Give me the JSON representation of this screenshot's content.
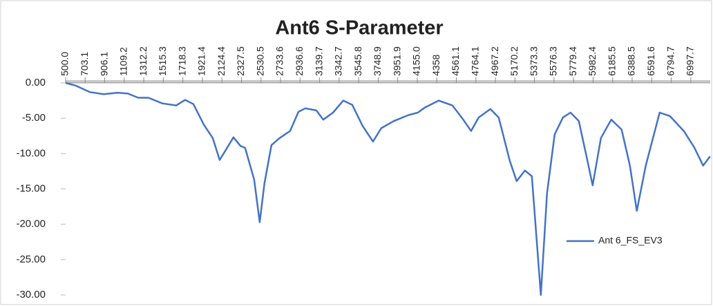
{
  "chart_data": {
    "type": "line",
    "title": "Ant6 S-Parameter",
    "x": [
      500,
      608,
      751,
      895,
      1038,
      1146,
      1254,
      1361,
      1505,
      1649,
      1742,
      1828,
      1936,
      2029,
      2101,
      2151,
      2244,
      2316,
      2366,
      2460,
      2517,
      2567,
      2639,
      2725,
      2833,
      2919,
      2991,
      3106,
      3178,
      3279,
      3386,
      3479,
      3587,
      3695,
      3781,
      3910,
      4054,
      4161,
      4233,
      4377,
      4521,
      4628,
      4714,
      4793,
      4915,
      5001,
      5116,
      5188,
      5274,
      5346,
      5439,
      5504,
      5583,
      5669,
      5748,
      5834,
      5920,
      5978,
      6064,
      6171,
      6279,
      6365,
      6437,
      6530,
      6674,
      6781,
      6925,
      7033,
      7126,
      7198
    ],
    "series": [
      {
        "name": "Ant 6_FS_EV3",
        "color": "#4472c4",
        "values": [
          0,
          -0.4,
          -1.3,
          -1.6,
          -1.4,
          -1.5,
          -2.1,
          -2.1,
          -2.9,
          -3.2,
          -2.4,
          -3.0,
          -5.9,
          -7.8,
          -10.9,
          -9.8,
          -7.7,
          -8.9,
          -9.2,
          -13.7,
          -19.7,
          -14.2,
          -8.8,
          -7.8,
          -6.8,
          -4.1,
          -3.6,
          -3.9,
          -5.2,
          -4.2,
          -2.5,
          -3.1,
          -6.1,
          -8.3,
          -6.4,
          -5.4,
          -4.6,
          -4.2,
          -3.5,
          -2.5,
          -3.2,
          -5.1,
          -6.8,
          -4.9,
          -3.7,
          -4.9,
          -11.0,
          -13.9,
          -12.4,
          -13.2,
          -30,
          -15.6,
          -7.3,
          -4.9,
          -4.2,
          -5.4,
          -10.8,
          -14.5,
          -7.8,
          -5.2,
          -6.6,
          -11.7,
          -18.1,
          -11.7,
          -4.2,
          -4.7,
          -6.8,
          -9.1,
          -11.7,
          -10.4
        ]
      }
    ],
    "xlim": [
      500,
      7200
    ],
    "xticks": [
      {
        "value": 500,
        "label": "500.0"
      },
      703.1,
      906.1,
      1109.2,
      1312.2,
      1515.3,
      1718.3,
      1921.4,
      2124.4,
      2327.5,
      2530.5,
      2733.6,
      2936.6,
      3139.7,
      3342.7,
      3545.8,
      3748.9,
      3951.9,
      {
        "value": 4155,
        "label": "4155.0"
      },
      4358.0,
      4561.1,
      4764.1,
      4967.2,
      5170.2,
      5373.3,
      5576.3,
      5779.4,
      5982.4,
      6185.5,
      6388.5,
      6591.6,
      6794.7,
      6997.7
    ],
    "ylim": [
      -30,
      0
    ],
    "yticks": [
      {
        "value": 0,
        "label": "0.00"
      },
      {
        "value": -5,
        "label": "-5.00"
      },
      {
        "value": -10,
        "label": "-10.00"
      },
      {
        "value": -15,
        "label": "-15.00"
      },
      {
        "value": -20,
        "label": "-20.00"
      },
      {
        "value": -25,
        "label": "-25.00"
      },
      {
        "value": -30,
        "label": "-30.00"
      }
    ],
    "legend": "right"
  }
}
